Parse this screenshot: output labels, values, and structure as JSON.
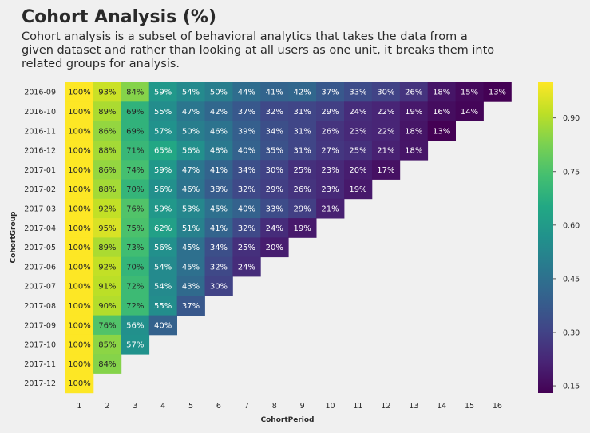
{
  "header": {
    "title": "Cohort Analysis (%)",
    "subtitle": "Cohort analysis is a subset of behavioral analytics that takes the data from a given dataset and rather than looking at all users as one unit, it breaks them into related groups for analysis."
  },
  "chart_data": {
    "type": "heatmap",
    "title": "Cohort Analysis (%)",
    "xlabel": "CohortPeriod",
    "ylabel": "CohortGroup",
    "x": [
      "1",
      "2",
      "3",
      "4",
      "5",
      "6",
      "7",
      "8",
      "9",
      "10",
      "11",
      "12",
      "13",
      "14",
      "15",
      "16"
    ],
    "y": [
      "2016-09",
      "2016-10",
      "2016-11",
      "2016-12",
      "2017-01",
      "2017-02",
      "2017-03",
      "2017-04",
      "2017-05",
      "2017-06",
      "2017-07",
      "2017-08",
      "2017-09",
      "2017-10",
      "2017-11",
      "2017-12"
    ],
    "values": [
      [
        1.0,
        0.93,
        0.84,
        0.59,
        0.54,
        0.5,
        0.44,
        0.41,
        0.42,
        0.37,
        0.33,
        0.3,
        0.26,
        0.18,
        0.15,
        0.13
      ],
      [
        1.0,
        0.89,
        0.69,
        0.55,
        0.47,
        0.42,
        0.37,
        0.32,
        0.31,
        0.29,
        0.24,
        0.22,
        0.19,
        0.16,
        0.14
      ],
      [
        1.0,
        0.86,
        0.69,
        0.57,
        0.5,
        0.46,
        0.39,
        0.34,
        0.31,
        0.26,
        0.23,
        0.22,
        0.18,
        0.13
      ],
      [
        1.0,
        0.88,
        0.71,
        0.65,
        0.56,
        0.48,
        0.4,
        0.35,
        0.31,
        0.27,
        0.25,
        0.21,
        0.18
      ],
      [
        1.0,
        0.86,
        0.74,
        0.59,
        0.47,
        0.41,
        0.34,
        0.3,
        0.25,
        0.23,
        0.2,
        0.17
      ],
      [
        1.0,
        0.88,
        0.7,
        0.56,
        0.46,
        0.38,
        0.32,
        0.29,
        0.26,
        0.23,
        0.19
      ],
      [
        1.0,
        0.92,
        0.76,
        0.59,
        0.53,
        0.45,
        0.4,
        0.33,
        0.29,
        0.21
      ],
      [
        1.0,
        0.95,
        0.75,
        0.62,
        0.51,
        0.41,
        0.32,
        0.24,
        0.19
      ],
      [
        1.0,
        0.89,
        0.73,
        0.56,
        0.45,
        0.34,
        0.25,
        0.2
      ],
      [
        1.0,
        0.92,
        0.7,
        0.54,
        0.45,
        0.32,
        0.24
      ],
      [
        1.0,
        0.91,
        0.72,
        0.54,
        0.43,
        0.3
      ],
      [
        1.0,
        0.9,
        0.72,
        0.55,
        0.37
      ],
      [
        1.0,
        0.76,
        0.56,
        0.4
      ],
      [
        1.0,
        0.85,
        0.57
      ],
      [
        1.0,
        0.84
      ],
      [
        1.0
      ]
    ],
    "labels": [
      [
        "100%",
        "93%",
        "84%",
        "59%",
        "54%",
        "50%",
        "44%",
        "41%",
        "42%",
        "37%",
        "33%",
        "30%",
        "26%",
        "18%",
        "15%",
        "13%"
      ],
      [
        "100%",
        "89%",
        "69%",
        "55%",
        "47%",
        "42%",
        "37%",
        "32%",
        "31%",
        "29%",
        "24%",
        "22%",
        "19%",
        "16%",
        "14%"
      ],
      [
        "100%",
        "86%",
        "69%",
        "57%",
        "50%",
        "46%",
        "39%",
        "34%",
        "31%",
        "26%",
        "23%",
        "22%",
        "18%",
        "13%"
      ],
      [
        "100%",
        "88%",
        "71%",
        "65%",
        "56%",
        "48%",
        "40%",
        "35%",
        "31%",
        "27%",
        "25%",
        "21%",
        "18%"
      ],
      [
        "100%",
        "86%",
        "74%",
        "59%",
        "47%",
        "41%",
        "34%",
        "30%",
        "25%",
        "23%",
        "20%",
        "17%"
      ],
      [
        "100%",
        "88%",
        "70%",
        "56%",
        "46%",
        "38%",
        "32%",
        "29%",
        "26%",
        "23%",
        "19%"
      ],
      [
        "100%",
        "92%",
        "76%",
        "59%",
        "53%",
        "45%",
        "40%",
        "33%",
        "29%",
        "21%"
      ],
      [
        "100%",
        "95%",
        "75%",
        "62%",
        "51%",
        "41%",
        "32%",
        "24%",
        "19%"
      ],
      [
        "100%",
        "89%",
        "73%",
        "56%",
        "45%",
        "34%",
        "25%",
        "20%"
      ],
      [
        "100%",
        "92%",
        "70%",
        "54%",
        "45%",
        "32%",
        "24%"
      ],
      [
        "100%",
        "91%",
        "72%",
        "54%",
        "43%",
        "30%"
      ],
      [
        "100%",
        "90%",
        "72%",
        "55%",
        "37%"
      ],
      [
        "100%",
        "76%",
        "56%",
        "40%"
      ],
      [
        "100%",
        "85%",
        "57%"
      ],
      [
        "100%",
        "84%"
      ],
      [
        "100%"
      ]
    ],
    "colorscale": "viridis",
    "vmin": 0.13,
    "vmax": 1.0,
    "colorbar_ticks": [
      "0.15",
      "0.30",
      "0.45",
      "0.60",
      "0.75",
      "0.90"
    ],
    "colorbar_tick_values": [
      0.15,
      0.3,
      0.45,
      0.6,
      0.75,
      0.9
    ],
    "grid": false
  }
}
